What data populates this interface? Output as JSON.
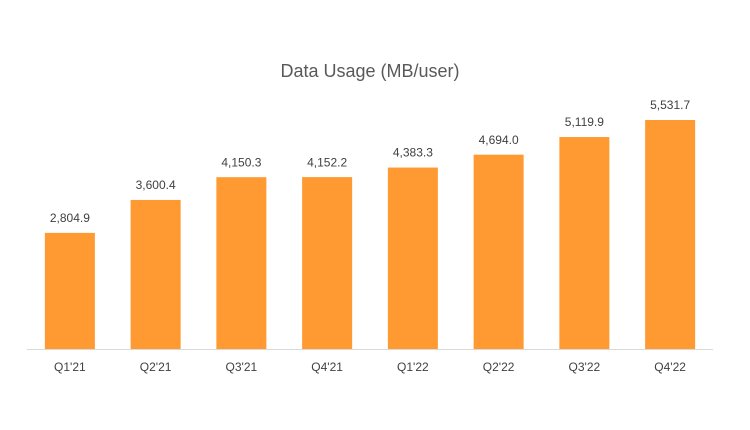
{
  "chart_data": {
    "type": "bar",
    "title": "Data Usage (MB/user)",
    "categories": [
      "Q1'21",
      "Q2'21",
      "Q3'21",
      "Q4'21",
      "Q1'22",
      "Q2'22",
      "Q3'22",
      "Q4'22"
    ],
    "values": [
      2804.9,
      3600.4,
      4150.3,
      4152.2,
      4383.3,
      4694.0,
      5119.9,
      5531.7
    ],
    "value_labels": [
      "2,804.9",
      "3,600.4",
      "4,150.3",
      "4,152.2",
      "4,383.3",
      "4,694.0",
      "5,119.9",
      "5,531.7"
    ],
    "color": "#ff9a33"
  }
}
